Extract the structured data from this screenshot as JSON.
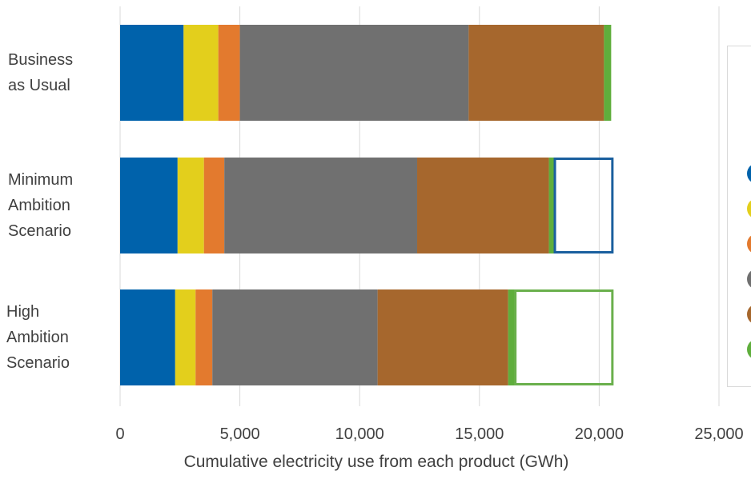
{
  "chart_data": {
    "type": "bar",
    "orientation": "horizontal",
    "stacked": true,
    "categories": [
      "Business\nas Usual",
      "Minimum\nAmbition\nScenario",
      "High\nAmbition\nScenario"
    ],
    "series": [
      {
        "color": "#0062ab",
        "values": [
          2650,
          2400,
          2300
        ]
      },
      {
        "color": "#e3cf1c",
        "values": [
          1450,
          1100,
          850
        ]
      },
      {
        "color": "#e37a2e",
        "values": [
          900,
          850,
          700
        ]
      },
      {
        "color": "#707070",
        "values": [
          9550,
          8050,
          6900
        ]
      },
      {
        "color": "#a6672d",
        "values": [
          5650,
          5500,
          5450
        ]
      },
      {
        "color": "#5fae3c",
        "values": [
          300,
          250,
          300
        ]
      }
    ],
    "savings_outlines": [
      {
        "category_index": 1,
        "from": 18150,
        "to": 20550,
        "color": "#1a5f9e"
      },
      {
        "category_index": 2,
        "from": 16500,
        "to": 20550,
        "color": "#6ab04c"
      }
    ],
    "xlim": [
      0,
      25000
    ],
    "xticks": [
      "0",
      "5,000",
      "10,000",
      "15,000",
      "20,000",
      "25,000"
    ],
    "xlabel": "Cumulative electricity use from each product (GWh)",
    "grid": true,
    "legend_position": "right (cut off at image edge)"
  }
}
